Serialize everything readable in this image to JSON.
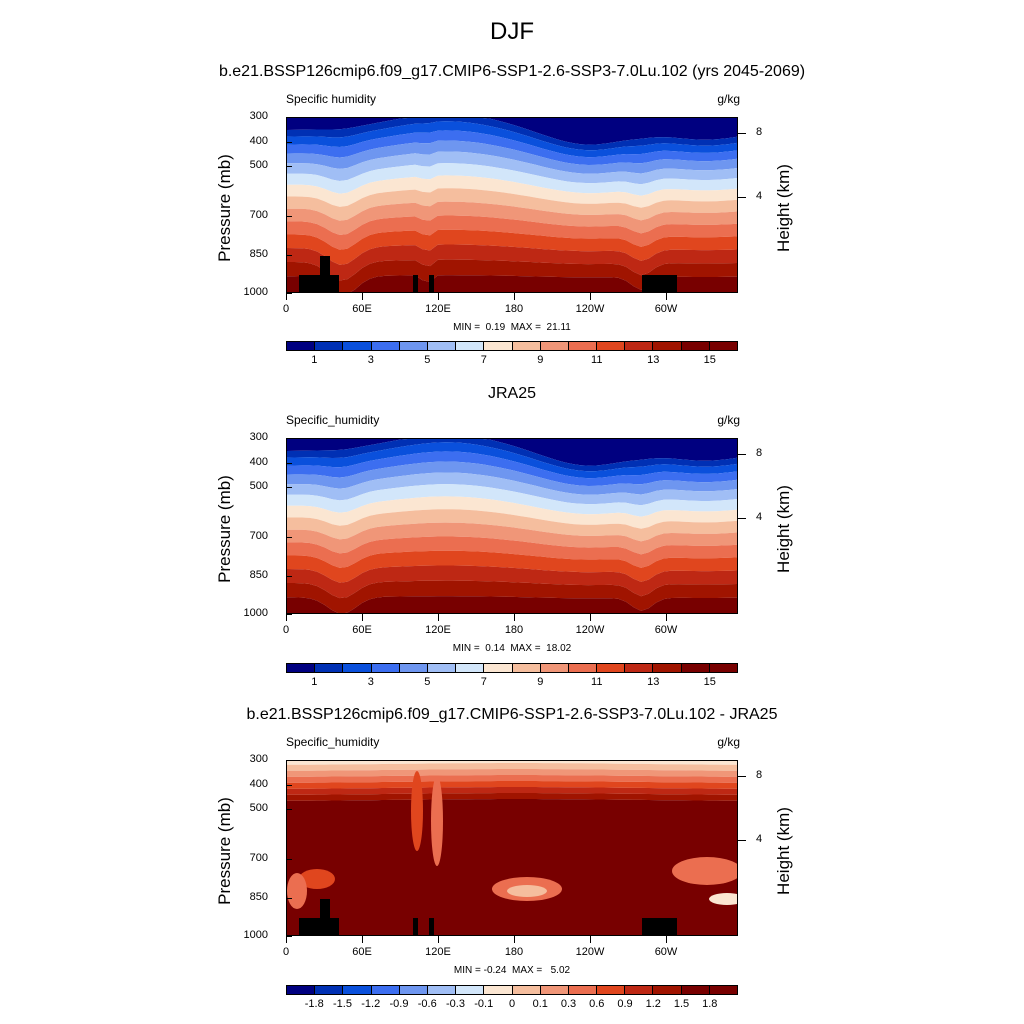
{
  "title": "DJF",
  "x_ticks": [
    "0",
    "60E",
    "120E",
    "180",
    "120W",
    "60W"
  ],
  "p_ticks": [
    "300",
    "400",
    "500",
    "700",
    "850",
    "1000"
  ],
  "h_ticks": [
    "8",
    "4"
  ],
  "ylabel": "Pressure (mb)",
  "hlabel": "Height (km)",
  "seq_colors": [
    "#000080",
    "#0030b4",
    "#0a50dc",
    "#3c6ef0",
    "#6e96f0",
    "#a0bef5",
    "#d2e6fa",
    "#fbe6d2",
    "#f5be9e",
    "#f09678",
    "#eb6e50",
    "#e0461e",
    "#be2814",
    "#a01400",
    "#780000"
  ],
  "cb1_labels": [
    "1",
    "3",
    "5",
    "7",
    "9",
    "11",
    "13",
    "15"
  ],
  "cb3_labels": [
    "-1.8",
    "-1.5",
    "-1.2",
    "-0.9",
    "-0.6",
    "-0.3",
    "-0.1",
    "0",
    "0.1",
    "0.3",
    "0.6",
    "0.9",
    "1.2",
    "1.5",
    "1.8"
  ],
  "panels": [
    {
      "title": "b.e21.BSSP126cmip6.f09_g17.CMIP6-SSP1-2.6-SSP3-7.0Lu.102 (yrs 2045-2069)",
      "variable": "Specific humidity",
      "units": "g/kg",
      "stats": "MIN =  0.19  MAX =  21.11"
    },
    {
      "title": "JRA25",
      "variable": "Specific_humidity",
      "units": "g/kg",
      "stats": "MIN =  0.14  MAX =  18.02"
    },
    {
      "title": "b.e21.BSSP126cmip6.f09_g17.CMIP6-SSP1-2.6-SSP3-7.0Lu.102 - JRA25",
      "variable": "Specific_humidity",
      "units": "g/kg",
      "stats": "MIN = -0.24  MAX =   5.02"
    }
  ],
  "chart_data": {
    "type": "heatmap",
    "title": "DJF",
    "x_axis": "longitude",
    "x_ticks": [
      "0",
      "60E",
      "120E",
      "180",
      "120W",
      "60W"
    ],
    "y_axis": "pressure",
    "ylabel": "Pressure (mb)",
    "y2label": "Height (km)",
    "ylim": [
      1000,
      300
    ],
    "series": [
      {
        "name": "b.e21.BSSP126cmip6.f09_g17.CMIP6-SSP1-2.6-SSP3-7.0Lu.102 (yrs 2045-2069)",
        "variable": "Specific humidity",
        "units": "g/kg",
        "min": 0.19,
        "max": 21.11,
        "contour_levels": [
          1,
          2,
          3,
          4,
          5,
          6,
          7,
          8,
          9,
          10,
          11,
          12,
          13,
          14,
          15
        ]
      },
      {
        "name": "JRA25",
        "variable": "Specific_humidity",
        "units": "g/kg",
        "min": 0.14,
        "max": 18.02,
        "contour_levels": [
          1,
          2,
          3,
          4,
          5,
          6,
          7,
          8,
          9,
          10,
          11,
          12,
          13,
          14,
          15
        ]
      },
      {
        "name": "b.e21.BSSP126cmip6.f09_g17.CMIP6-SSP1-2.6-SSP3-7.0Lu.102 - JRA25",
        "variable": "Specific_humidity",
        "units": "g/kg",
        "min": -0.24,
        "max": 5.02,
        "contour_levels": [
          -1.8,
          -1.5,
          -1.2,
          -0.9,
          -0.6,
          -0.3,
          -0.1,
          0,
          0.1,
          0.3,
          0.6,
          0.9,
          1.2,
          1.5,
          1.8
        ]
      }
    ]
  }
}
